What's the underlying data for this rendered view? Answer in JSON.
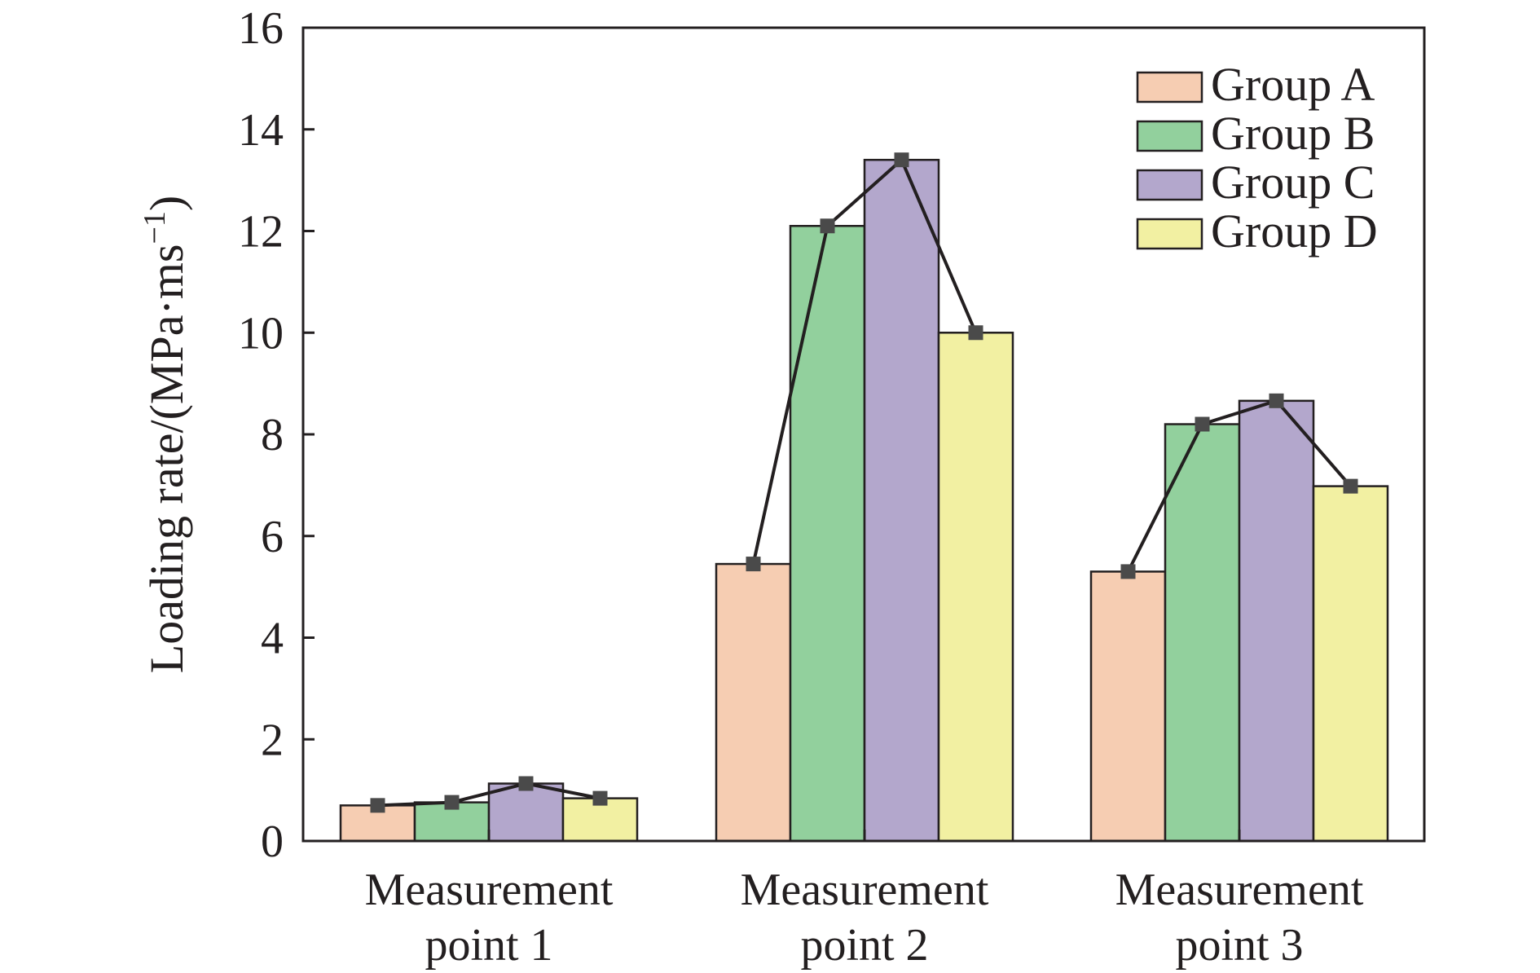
{
  "chart_data": {
    "type": "bar",
    "title": "",
    "xlabel": "",
    "ylabel": "Loading rate/(MPa·ms",
    "ylabel_superscript": "−1",
    "ylabel_suffix": ")",
    "categories": [
      [
        "Measurement",
        "point 1"
      ],
      [
        "Measurement",
        "point 2"
      ],
      [
        "Measurement",
        "point 3"
      ]
    ],
    "ylim": [
      0,
      16
    ],
    "yticks": [
      0,
      2,
      4,
      6,
      8,
      10,
      12,
      14,
      16
    ],
    "grid": false,
    "legend_position": "top-right",
    "series": [
      {
        "name": "Group A",
        "color": "#f6cdb2",
        "values": [
          0.7,
          5.45,
          5.3
        ]
      },
      {
        "name": "Group B",
        "color": "#92d09d",
        "values": [
          0.76,
          12.1,
          8.2
        ]
      },
      {
        "name": "Group C",
        "color": "#b3a7cc",
        "values": [
          1.13,
          13.4,
          8.66
        ]
      },
      {
        "name": "Group D",
        "color": "#f2f0a2",
        "values": [
          0.84,
          10.0,
          6.98
        ]
      }
    ],
    "line_overlay": {
      "color": "#231f20",
      "marker_color": "#4a4a4a",
      "marker": "square"
    }
  }
}
